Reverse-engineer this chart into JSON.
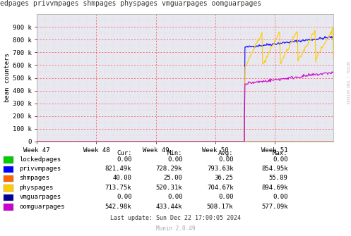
{
  "title_text": "edpages privvmpages shmpages physpages vmguarpages oomguarpages",
  "ylabel": "bean counters",
  "bg_color": "#ffffff",
  "plot_bg_color": "#e8e8f0",
  "x_ticks_pos": [
    0,
    84,
    168,
    252,
    336
  ],
  "x_tick_labels": [
    "Week 47",
    "Week 48",
    "Week 49",
    "Week 50",
    "Week 51"
  ],
  "ylim": [
    0,
    1000000
  ],
  "y_ticks": [
    0,
    100000,
    200000,
    300000,
    400000,
    500000,
    600000,
    700000,
    800000,
    900000
  ],
  "y_tick_labels": [
    "0",
    "100 k",
    "200 k",
    "300 k",
    "400 k",
    "500 k",
    "600 k",
    "700 k",
    "800 k",
    "900 k"
  ],
  "series": {
    "lockedpages": {
      "color": "#00cc00"
    },
    "privvmpages": {
      "color": "#0000ff"
    },
    "shmpages": {
      "color": "#ff6600"
    },
    "physpages": {
      "color": "#ffcc00"
    },
    "vmguarpages": {
      "color": "#000099"
    },
    "oomguarpages": {
      "color": "#cc00cc"
    }
  },
  "legend_entries": [
    {
      "label": "lockedpages",
      "color": "#00cc00",
      "cur": "0.00",
      "min": "0.00",
      "avg": "0.00",
      "max": "0.00"
    },
    {
      "label": "privvmpages",
      "color": "#0000ff",
      "cur": "821.49k",
      "min": "728.29k",
      "avg": "793.63k",
      "max": "854.95k"
    },
    {
      "label": "shmpages",
      "color": "#ff6600",
      "cur": "40.00",
      "min": "25.00",
      "avg": "36.25",
      "max": "55.89"
    },
    {
      "label": "physpages",
      "color": "#ffcc00",
      "cur": "713.75k",
      "min": "520.31k",
      "avg": "704.67k",
      "max": "894.69k"
    },
    {
      "label": "vmguarpages",
      "color": "#000099",
      "cur": "0.00",
      "min": "0.00",
      "avg": "0.00",
      "max": "0.00"
    },
    {
      "label": "oomguarpages",
      "color": "#cc00cc",
      "cur": "542.98k",
      "min": "433.44k",
      "avg": "508.17k",
      "max": "577.09k"
    }
  ],
  "last_update": "Last update: Sun Dec 22 17:00:05 2024",
  "munin_version": "Munin 2.0.49",
  "watermark": "RRTOOL / TOBI OETIKER",
  "n_total": 420,
  "start_active": 294
}
